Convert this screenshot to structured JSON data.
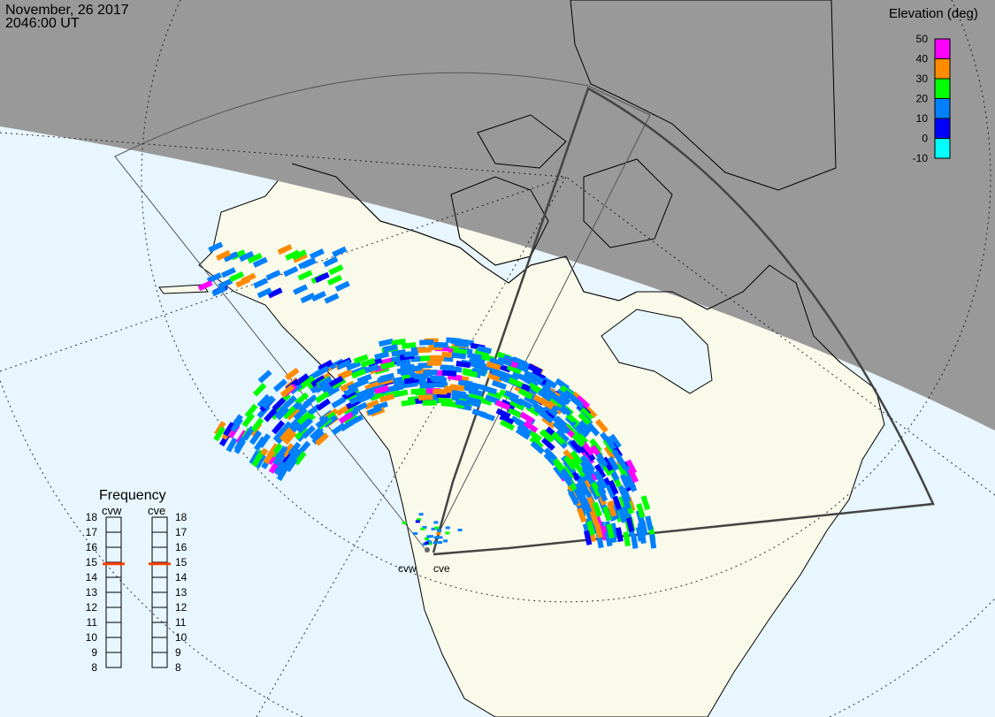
{
  "header": {
    "date": "November, 26 2017",
    "time": "2046:00 UT"
  },
  "colors": {
    "ocean": "#e8f6ff",
    "land": "#fafaeb",
    "night": "#999999",
    "frequency_marker": "#ff4000"
  },
  "elevation_legend": {
    "title": "Elevation (deg)",
    "ticks": [
      "50",
      "40",
      "30",
      "20",
      "10",
      "0",
      "-10"
    ],
    "bins": [
      {
        "range": "40-50",
        "color": "#ff00ff"
      },
      {
        "range": "30-40",
        "color": "#ff8c00"
      },
      {
        "range": "20-30",
        "color": "#00ff00"
      },
      {
        "range": "10-20",
        "color": "#0080ff"
      },
      {
        "range": "0-10",
        "color": "#0000ff"
      },
      {
        "range": "-10-0",
        "color": "#00ffff"
      }
    ]
  },
  "frequency_panel": {
    "title": "Frequency",
    "radars": [
      {
        "name": "cvw",
        "frequency_mhz": 14.9
      },
      {
        "name": "cve",
        "frequency_mhz": 14.9
      }
    ],
    "ticks": [
      "18",
      "17",
      "16",
      "15",
      "14",
      "13",
      "12",
      "11",
      "10",
      "9",
      "8"
    ]
  },
  "radar_sites": [
    {
      "label": "cvw"
    },
    {
      "label": "cve"
    }
  ],
  "scatter": {
    "elevation_mix": {
      "10-20": 0.55,
      "20-30": 0.2,
      "30-40": 0.1,
      "0-10": 0.1,
      "40-50": 0.05
    }
  }
}
